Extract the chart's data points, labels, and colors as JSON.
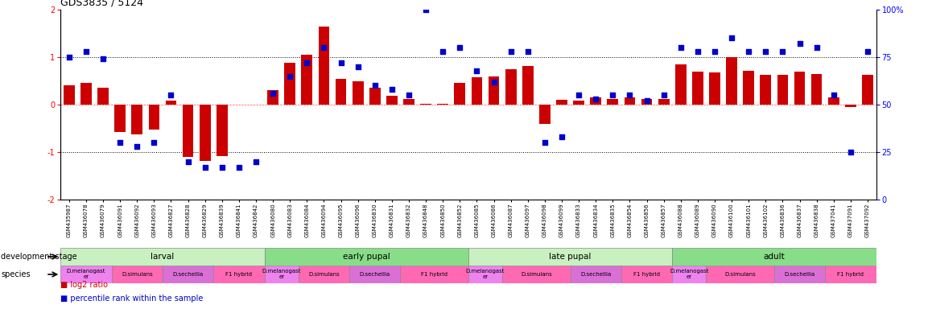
{
  "title": "GDS3835 / 5124",
  "sample_ids": [
    "GSM435987",
    "GSM436078",
    "GSM436079",
    "GSM436091",
    "GSM436092",
    "GSM436093",
    "GSM436827",
    "GSM436828",
    "GSM436829",
    "GSM436839",
    "GSM436841",
    "GSM436842",
    "GSM436080",
    "GSM436083",
    "GSM436084",
    "GSM436094",
    "GSM436095",
    "GSM436096",
    "GSM436830",
    "GSM436831",
    "GSM436832",
    "GSM436848",
    "GSM436850",
    "GSM436852",
    "GSM436085",
    "GSM436086",
    "GSM436087",
    "GSM436097",
    "GSM436098",
    "GSM436099",
    "GSM436833",
    "GSM436834",
    "GSM436835",
    "GSM436854",
    "GSM436856",
    "GSM436857",
    "GSM436088",
    "GSM436089",
    "GSM436090",
    "GSM436100",
    "GSM436101",
    "GSM436102",
    "GSM436836",
    "GSM436837",
    "GSM436838",
    "GSM437041",
    "GSM437091",
    "GSM437092"
  ],
  "log2_ratio": [
    0.4,
    0.45,
    0.35,
    -0.58,
    -0.62,
    -0.52,
    0.08,
    -1.1,
    -1.18,
    -1.08,
    0.0,
    0.0,
    0.3,
    0.88,
    1.05,
    1.65,
    0.55,
    0.5,
    0.35,
    0.18,
    0.12,
    0.02,
    0.02,
    0.45,
    0.58,
    0.6,
    0.75,
    0.82,
    -0.4,
    0.1,
    0.08,
    0.15,
    0.12,
    0.15,
    0.12,
    0.12,
    0.85,
    0.7,
    0.68,
    1.0,
    0.72,
    0.62,
    0.62,
    0.7,
    0.65,
    0.15,
    -0.05,
    0.62
  ],
  "percentile": [
    75,
    78,
    74,
    30,
    28,
    30,
    55,
    20,
    17,
    17,
    17,
    20,
    56,
    65,
    72,
    80,
    72,
    70,
    60,
    58,
    55,
    100,
    78,
    80,
    68,
    62,
    78,
    78,
    30,
    33,
    55,
    53,
    55,
    55,
    52,
    55,
    80,
    78,
    78,
    85,
    78,
    78,
    78,
    82,
    80,
    55,
    25,
    78
  ],
  "development_stages": [
    {
      "label": "larval",
      "start": 0,
      "end": 11
    },
    {
      "label": "early pupal",
      "start": 12,
      "end": 23
    },
    {
      "label": "late pupal",
      "start": 24,
      "end": 35
    },
    {
      "label": "adult",
      "start": 36,
      "end": 47
    }
  ],
  "species_groups": [
    {
      "label": "D.melanogast\ner",
      "start": 0,
      "end": 2,
      "color": "#ee82ee"
    },
    {
      "label": "D.simulans",
      "start": 3,
      "end": 5,
      "color": "#ff69b4"
    },
    {
      "label": "D.sechellia",
      "start": 6,
      "end": 8,
      "color": "#da70d6"
    },
    {
      "label": "F1 hybrid",
      "start": 9,
      "end": 11,
      "color": "#ff69b4"
    },
    {
      "label": "D.melanogast\ner",
      "start": 12,
      "end": 13,
      "color": "#ee82ee"
    },
    {
      "label": "D.simulans",
      "start": 14,
      "end": 16,
      "color": "#ff69b4"
    },
    {
      "label": "D.sechellia",
      "start": 17,
      "end": 19,
      "color": "#da70d6"
    },
    {
      "label": "F1 hybrid",
      "start": 20,
      "end": 23,
      "color": "#ff69b4"
    },
    {
      "label": "D.melanogast\ner",
      "start": 24,
      "end": 25,
      "color": "#ee82ee"
    },
    {
      "label": "D.simulans",
      "start": 26,
      "end": 29,
      "color": "#ff69b4"
    },
    {
      "label": "D.sechellia",
      "start": 30,
      "end": 32,
      "color": "#da70d6"
    },
    {
      "label": "F1 hybrid",
      "start": 33,
      "end": 35,
      "color": "#ff69b4"
    },
    {
      "label": "D.melanogast\ner",
      "start": 36,
      "end": 37,
      "color": "#ee82ee"
    },
    {
      "label": "D.simulans",
      "start": 38,
      "end": 41,
      "color": "#ff69b4"
    },
    {
      "label": "D.sechellia",
      "start": 42,
      "end": 44,
      "color": "#da70d6"
    },
    {
      "label": "F1 hybrid",
      "start": 45,
      "end": 47,
      "color": "#ff69b4"
    }
  ],
  "ylim_left": [
    -2.0,
    2.0
  ],
  "ylim_right": [
    0,
    100
  ],
  "bar_color": "#cc0000",
  "dot_color": "#0000cc",
  "bg_color": "#ffffff",
  "stage_colors": [
    "#c8f0c0",
    "#88dd88"
  ],
  "left_yticks": [
    -2,
    -1,
    0,
    1,
    2
  ],
  "right_yticks": [
    0,
    25,
    50,
    75,
    100
  ],
  "right_yticklabels": [
    "0",
    "25",
    "50",
    "75",
    "100%"
  ]
}
